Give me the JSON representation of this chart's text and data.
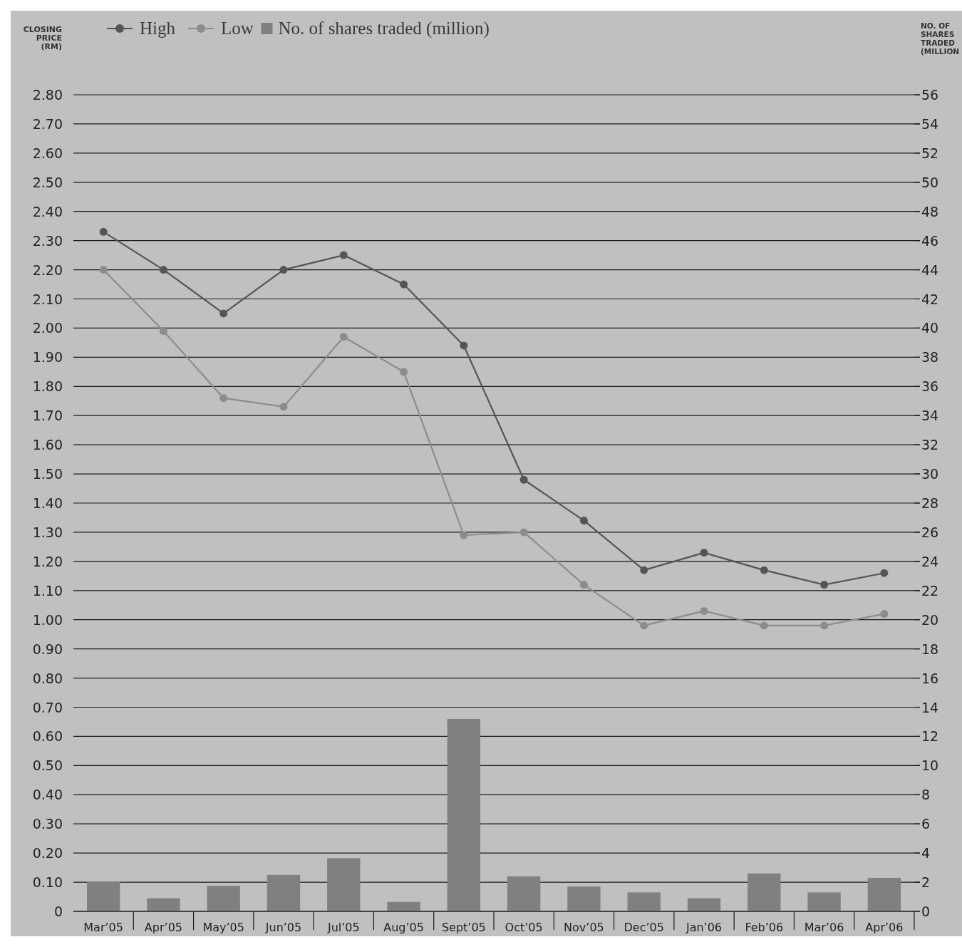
{
  "chart_data": {
    "type": "line",
    "ylabel": "CLOSING PRICE (RM)",
    "y2label": "NO. OF SHARES TRADED (MILLION",
    "categories": [
      "Mar’05",
      "Apr’05",
      "May’05",
      "Jun’05",
      "Jul’05",
      "Aug’05",
      "Sept’05",
      "Oct’05",
      "Nov’05",
      "Dec’05",
      "Jan’06",
      "Feb’06",
      "Mar’06",
      "Apr’06"
    ],
    "series": [
      {
        "name": "High",
        "color": "#555557",
        "values": [
          2.33,
          2.2,
          2.05,
          2.2,
          2.25,
          2.15,
          1.94,
          1.48,
          1.34,
          1.17,
          1.23,
          1.17,
          1.12,
          1.16
        ]
      },
      {
        "name": "Low",
        "color": "#8c8c8c",
        "values": [
          2.2,
          1.99,
          1.76,
          1.73,
          1.97,
          1.85,
          1.29,
          1.3,
          1.12,
          0.98,
          1.03,
          0.98,
          0.98,
          1.02
        ]
      },
      {
        "name": "No. of shares traded (million)",
        "type": "bar",
        "axis": "y2",
        "color": "#808080",
        "values": [
          2.05,
          0.9,
          1.75,
          2.5,
          3.65,
          0.65,
          13.2,
          2.4,
          1.7,
          1.3,
          0.9,
          2.6,
          1.3,
          2.3
        ]
      }
    ],
    "ylim": [
      0,
      2.8
    ],
    "yticks": [
      0,
      {
        "value": 0.1,
        "label": "0.10"
      },
      {
        "value": 0.2,
        "label": "0.20"
      },
      {
        "value": 0.3,
        "label": "0.30"
      },
      {
        "value": 0.4,
        "label": "0.40"
      },
      {
        "value": 0.5,
        "label": "0.50"
      },
      {
        "value": 0.6,
        "label": "0.60"
      },
      {
        "value": 0.7,
        "label": "0.70"
      },
      {
        "value": 0.8,
        "label": "0.80"
      },
      {
        "value": 0.9,
        "label": "0.90"
      },
      {
        "value": 1,
        "label": "1.00"
      },
      {
        "value": 1.1,
        "label": "1.10"
      },
      {
        "value": 1.2,
        "label": "1.20"
      },
      {
        "value": 1.3,
        "label": "1.30"
      },
      {
        "value": 1.4,
        "label": "1.40"
      },
      {
        "value": 1.5,
        "label": "1.50"
      },
      {
        "value": 1.6,
        "label": "1.60"
      },
      {
        "value": 1.7,
        "label": "1.70"
      },
      {
        "value": 1.8,
        "label": "1.80"
      },
      {
        "value": 1.9,
        "label": "1.90"
      },
      {
        "value": 2,
        "label": "2.00"
      },
      {
        "value": 2.1,
        "label": "2.10"
      },
      {
        "value": 2.2,
        "label": "2.20"
      },
      {
        "value": 2.3,
        "label": "2.30"
      },
      {
        "value": 2.4,
        "label": "2.40"
      },
      {
        "value": 2.5,
        "label": "2.50"
      },
      {
        "value": 2.6,
        "label": "2.60"
      },
      {
        "value": 2.7,
        "label": "2.70"
      },
      {
        "value": 2.8,
        "label": "2.80"
      }
    ],
    "y2lim": [
      0,
      56
    ],
    "y2ticks": [
      0,
      2,
      4,
      6,
      8,
      10,
      12,
      14,
      16,
      18,
      20,
      22,
      24,
      26,
      28,
      30,
      32,
      34,
      36,
      38,
      40,
      42,
      44,
      46,
      48,
      50,
      52,
      54,
      56
    ],
    "grid": "y",
    "legend": "top",
    "marker": "circle"
  }
}
